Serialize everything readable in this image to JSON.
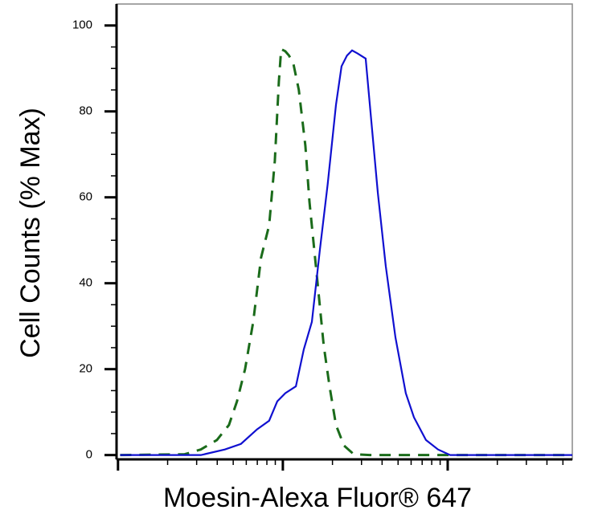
{
  "chart_data": {
    "type": "line",
    "xlabel": "Moesin-Alexa Fluor® 647",
    "ylabel": "Cell Counts (% Max)",
    "xscale": "log",
    "xlim": [
      0.98,
      570
    ],
    "xticks": [
      1,
      10,
      100
    ],
    "ylim": [
      -1,
      105
    ],
    "yticks": [
      0,
      20,
      40,
      60,
      80,
      100
    ],
    "series": [
      {
        "color": "#1a6b1a",
        "dash": true,
        "x": [
          1.03,
          2.54,
          3.18,
          3.98,
          4.71,
          5.27,
          5.9,
          6.61,
          7.38,
          8.26,
          8.94,
          9.46,
          9.77,
          10.35,
          10.9,
          11.6,
          12.5,
          13.7,
          14.5,
          16.2,
          17.7,
          19.2,
          21.0,
          23.5,
          26.9,
          33.6,
          162,
          570
        ],
        "values": [
          0,
          0.2,
          1.3,
          3.5,
          7,
          12.5,
          20,
          31,
          46,
          53.5,
          68.5,
          87,
          94.5,
          94,
          93,
          91,
          85,
          72,
          59,
          40.5,
          25.5,
          16,
          7,
          2.2,
          0.2,
          0,
          0,
          0
        ]
      },
      {
        "color": "#1010d0",
        "dash": false,
        "x": [
          1.03,
          3.18,
          4.45,
          5.57,
          6.98,
          8.26,
          9.25,
          10.35,
          12.0,
          13.4,
          15.0,
          16.8,
          18.7,
          21.0,
          22.7,
          24.5,
          26.3,
          28.4,
          31.8,
          34.4,
          37.7,
          42.1,
          48.2,
          55.7,
          62.4,
          73.8,
          87.4,
          103.5,
          145,
          284,
          570
        ],
        "values": [
          0,
          0,
          1.3,
          2.6,
          6,
          8,
          12.5,
          14.4,
          16,
          24.6,
          31,
          48,
          63,
          81.5,
          90.5,
          93,
          94.2,
          93.5,
          92.3,
          77.8,
          61,
          44,
          27.4,
          14.4,
          8.8,
          3.5,
          1.3,
          0,
          0,
          0,
          0
        ]
      }
    ]
  }
}
